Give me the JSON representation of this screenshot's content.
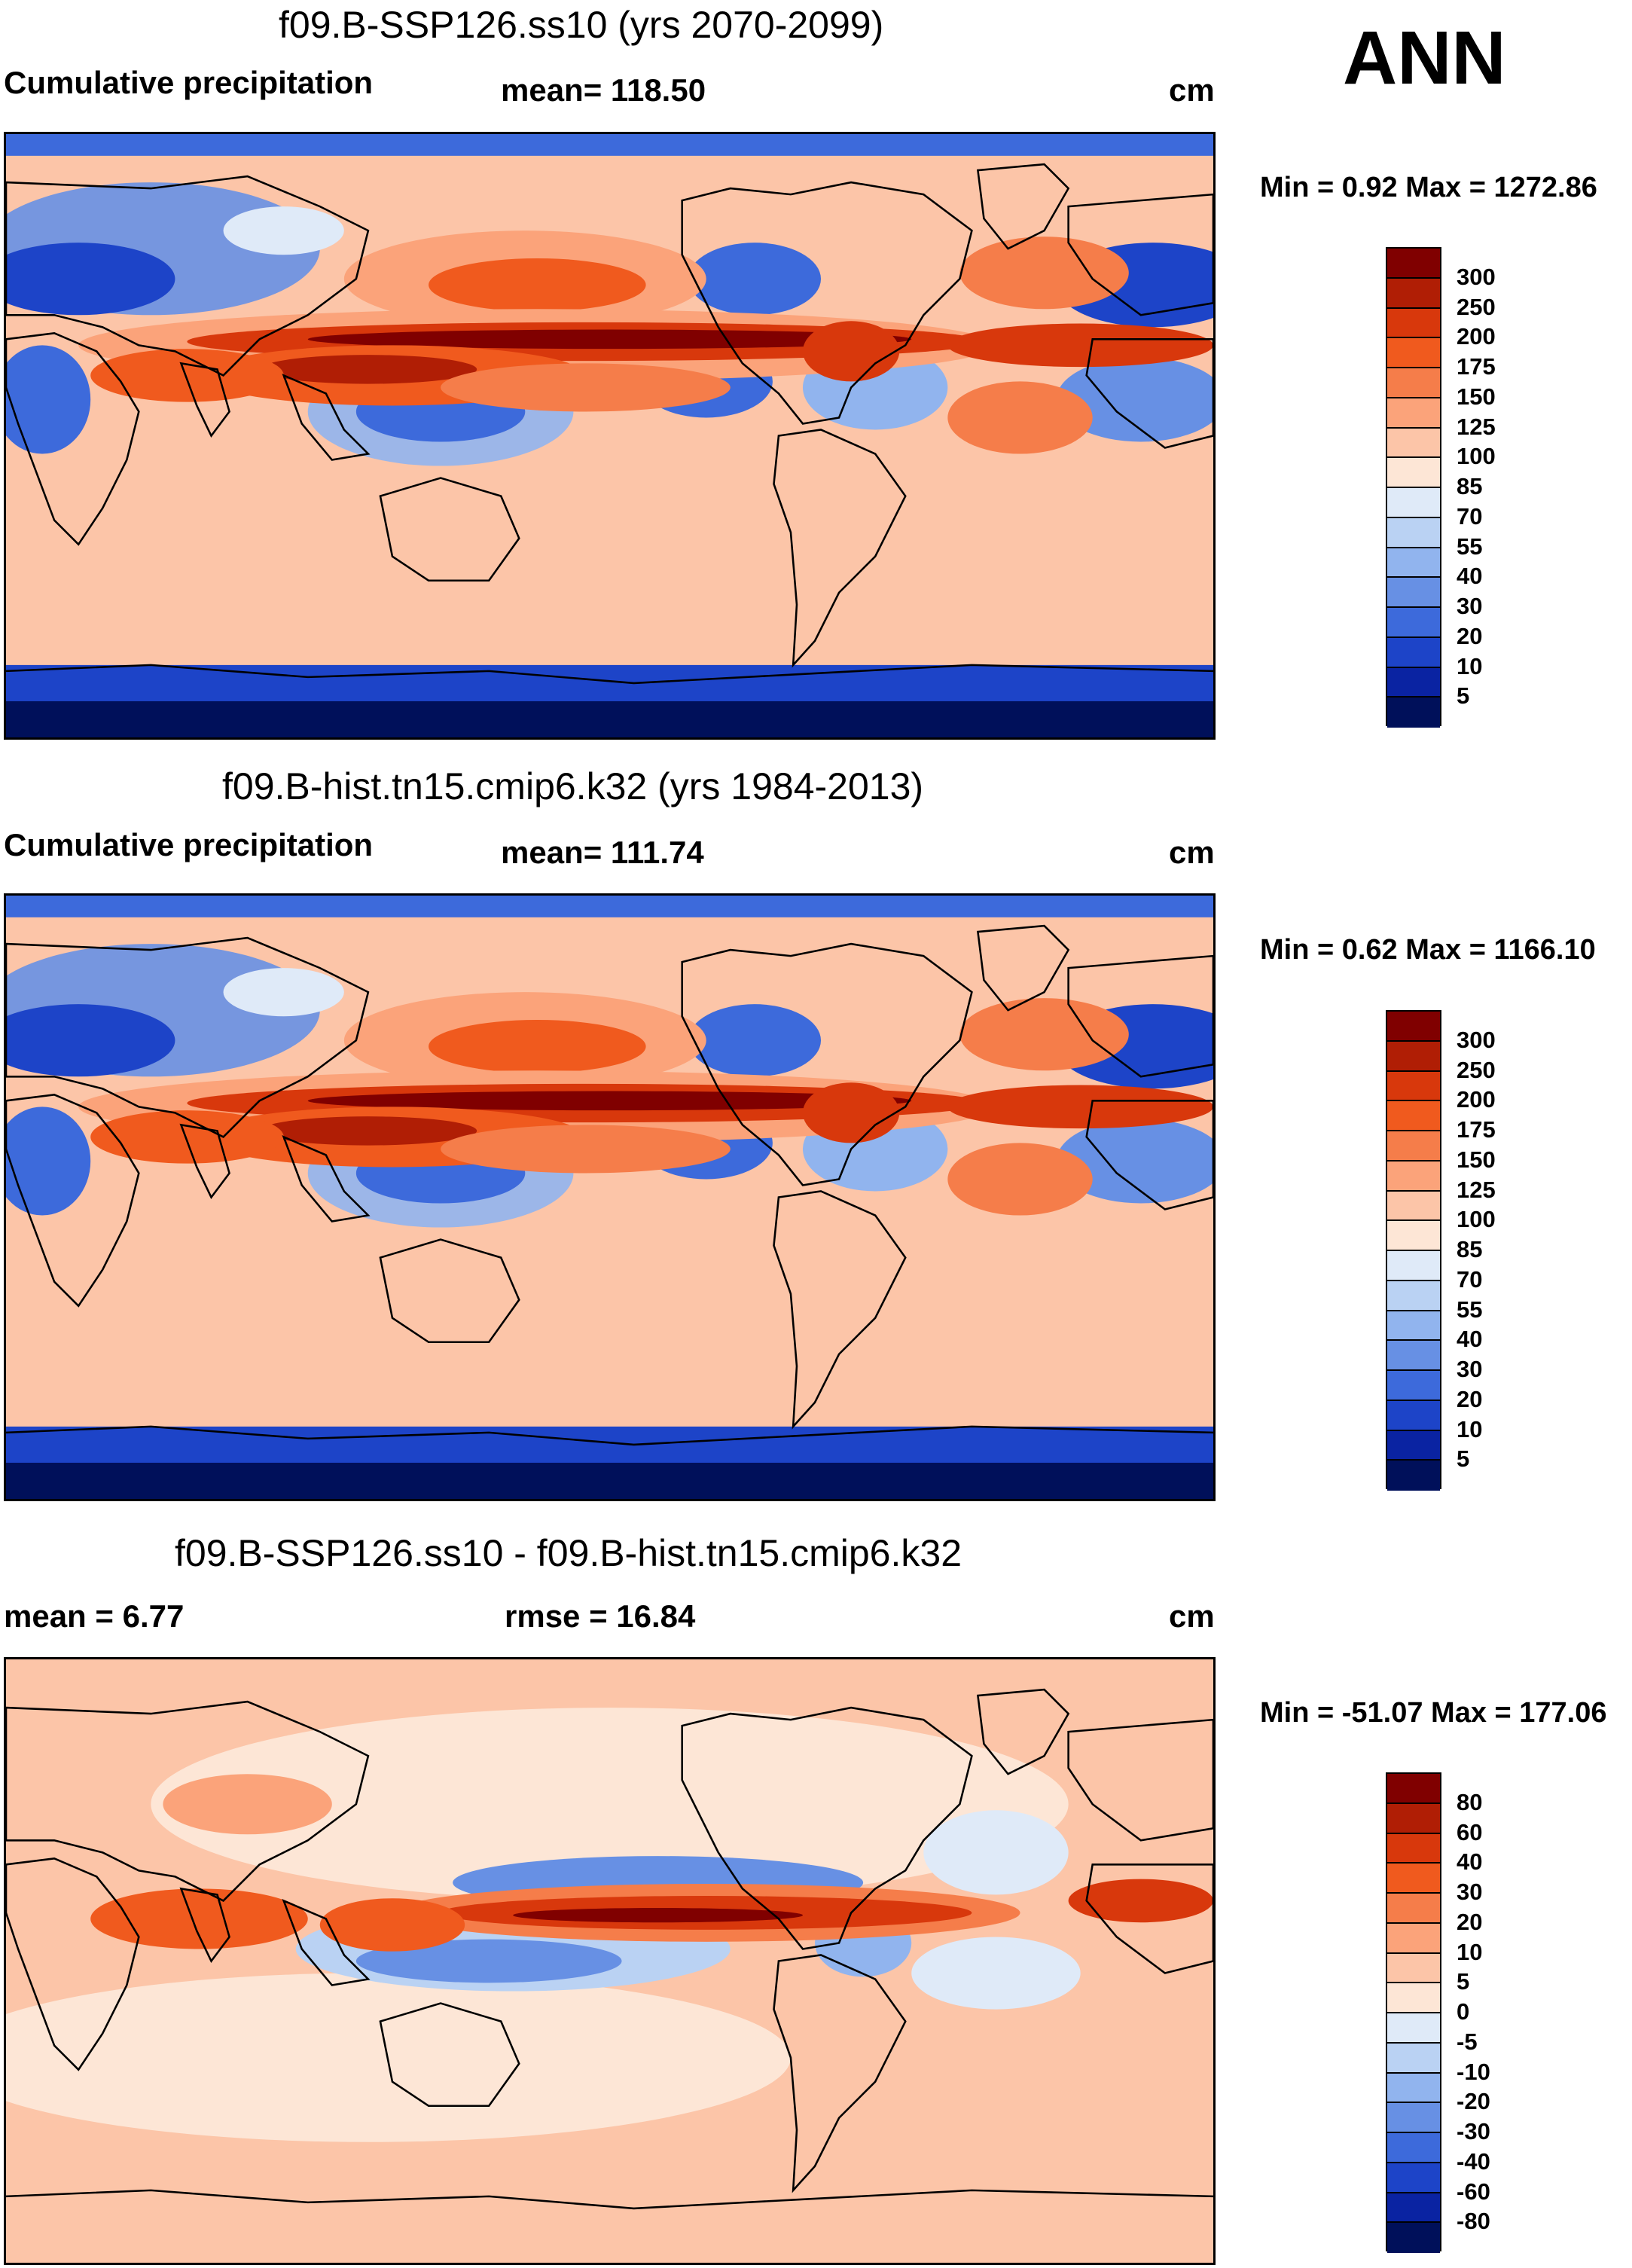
{
  "season": "ANN",
  "panels": [
    {
      "title": "f09.B-SSP126.ss10 (yrs 2070-2099)",
      "left_label": "Cumulative precipitation",
      "center_label": "mean= 118.50",
      "units": "cm",
      "minmax": "Min =   0.92 Max = 1272.86"
    },
    {
      "title": "f09.B-hist.tn15.cmip6.k32 (yrs 1984-2013)",
      "left_label": "Cumulative precipitation",
      "center_label": "mean= 111.74",
      "units": "cm",
      "minmax": "Min =   0.62 Max = 1166.10"
    },
    {
      "title": "f09.B-SSP126.ss10 - f09.B-hist.tn15.cmip6.k32",
      "left_label": "mean =   6.77",
      "center_label": "rmse =  16.84",
      "units": "cm",
      "minmax": "Min = -51.07 Max = 177.06"
    }
  ],
  "chart_data": [
    {
      "type": "heatmap",
      "title": "f09.B-SSP126.ss10 (yrs 2070-2099)",
      "variable": "Cumulative precipitation",
      "units": "cm",
      "mean": 118.5,
      "min": 0.92,
      "max": 1272.86,
      "colorbar_levels": [
        300,
        250,
        200,
        175,
        150,
        125,
        100,
        85,
        70,
        55,
        40,
        30,
        20,
        10,
        5
      ],
      "colorbar_colors": [
        "#800000",
        "#b01e05",
        "#d8380c",
        "#f05a1e",
        "#f57d4a",
        "#fba37a",
        "#fcc5a8",
        "#fde6d6",
        "#dfeaf8",
        "#bad2f3",
        "#91b4ee",
        "#6790e4",
        "#3d6adb",
        "#1d44c8",
        "#0a23a2",
        "#00105a"
      ]
    },
    {
      "type": "heatmap",
      "title": "f09.B-hist.tn15.cmip6.k32 (yrs 1984-2013)",
      "variable": "Cumulative precipitation",
      "units": "cm",
      "mean": 111.74,
      "min": 0.62,
      "max": 1166.1,
      "colorbar_levels": [
        300,
        250,
        200,
        175,
        150,
        125,
        100,
        85,
        70,
        55,
        40,
        30,
        20,
        10,
        5
      ],
      "colorbar_colors": [
        "#800000",
        "#b01e05",
        "#d8380c",
        "#f05a1e",
        "#f57d4a",
        "#fba37a",
        "#fcc5a8",
        "#fde6d6",
        "#dfeaf8",
        "#bad2f3",
        "#91b4ee",
        "#6790e4",
        "#3d6adb",
        "#1d44c8",
        "#0a23a2",
        "#00105a"
      ]
    },
    {
      "type": "heatmap",
      "title": "f09.B-SSP126.ss10 - f09.B-hist.tn15.cmip6.k32",
      "units": "cm",
      "mean": 6.77,
      "rmse": 16.84,
      "min": -51.07,
      "max": 177.06,
      "colorbar_levels": [
        80,
        60,
        40,
        30,
        20,
        10,
        5,
        0,
        -5,
        -10,
        -20,
        -30,
        -40,
        -60,
        -80
      ],
      "colorbar_colors": [
        "#800000",
        "#b01e05",
        "#d8380c",
        "#f05a1e",
        "#f57d4a",
        "#fba37a",
        "#fcc5a8",
        "#fde6d6",
        "#dfeaf8",
        "#bad2f3",
        "#91b4ee",
        "#6790e4",
        "#3d6adb",
        "#1d44c8",
        "#0a23a2",
        "#00105a"
      ]
    }
  ]
}
